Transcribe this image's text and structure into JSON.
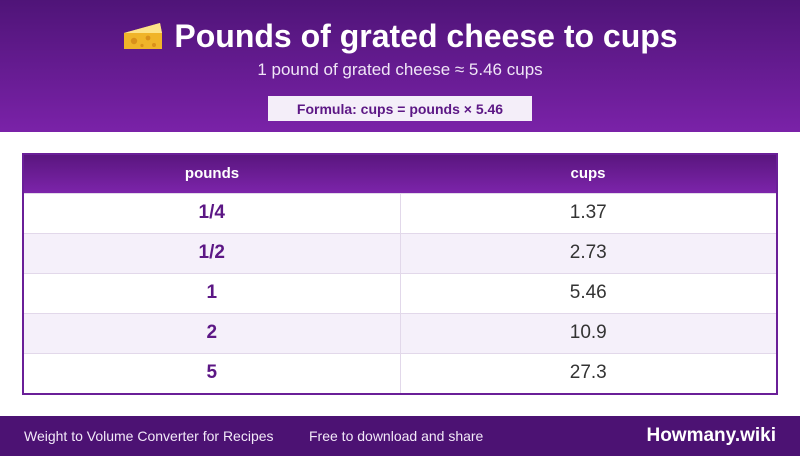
{
  "header": {
    "icon": "cheese-icon",
    "title": "Pounds of grated cheese to cups",
    "subtitle": "1 pound of grated cheese ≈ 5.46 cups",
    "formula": "Formula: cups = pounds × 5.46"
  },
  "table": {
    "columns": [
      "pounds",
      "cups"
    ],
    "rows": [
      {
        "pounds": "1/4",
        "cups": "1.37"
      },
      {
        "pounds": "1/2",
        "cups": "2.73"
      },
      {
        "pounds": "1",
        "cups": "5.46"
      },
      {
        "pounds": "2",
        "cups": "10.9"
      },
      {
        "pounds": "5",
        "cups": "27.3"
      }
    ]
  },
  "footer": {
    "converter_name": "Weight to Volume Converter for Recipes",
    "tagline": "Free to download and share",
    "brand": "Howmany.wiki"
  },
  "colors": {
    "header_purple": "#5c1785",
    "accent_light": "#f4eef9",
    "footer_purple": "#4c1273"
  }
}
